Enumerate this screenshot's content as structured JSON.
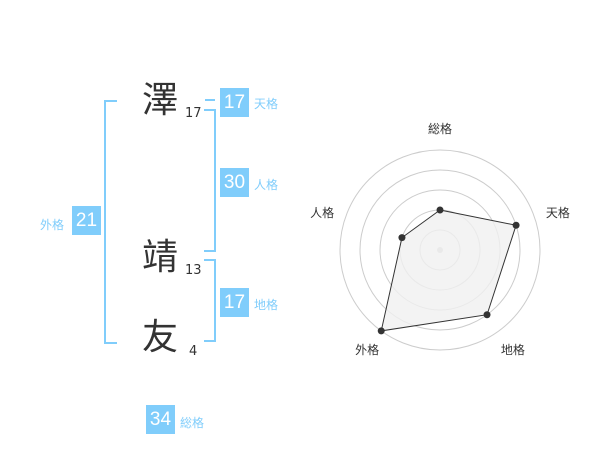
{
  "name_chars": [
    {
      "char": "澤",
      "strokes": "17"
    },
    {
      "char": "靖",
      "strokes": "13"
    },
    {
      "char": "友",
      "strokes": "4"
    }
  ],
  "kaku": {
    "tenkaku": {
      "label": "天格",
      "value": "17"
    },
    "jinkaku": {
      "label": "人格",
      "value": "30"
    },
    "chikaku": {
      "label": "地格",
      "value": "17"
    },
    "gaikaku": {
      "label": "外格",
      "value": "21"
    },
    "soukaku": {
      "label": "総格",
      "value": "34"
    }
  },
  "chart_data": {
    "type": "radar",
    "axes": [
      "総格",
      "天格",
      "地格",
      "外格",
      "人格"
    ],
    "values": [
      2,
      4,
      4,
      5,
      2
    ],
    "range": [
      0,
      5
    ],
    "rings": 5,
    "colors": {
      "fill": "#f0f0f0",
      "line": "#333333",
      "ring": "#cccccc",
      "accent": "#80cdfb"
    }
  }
}
